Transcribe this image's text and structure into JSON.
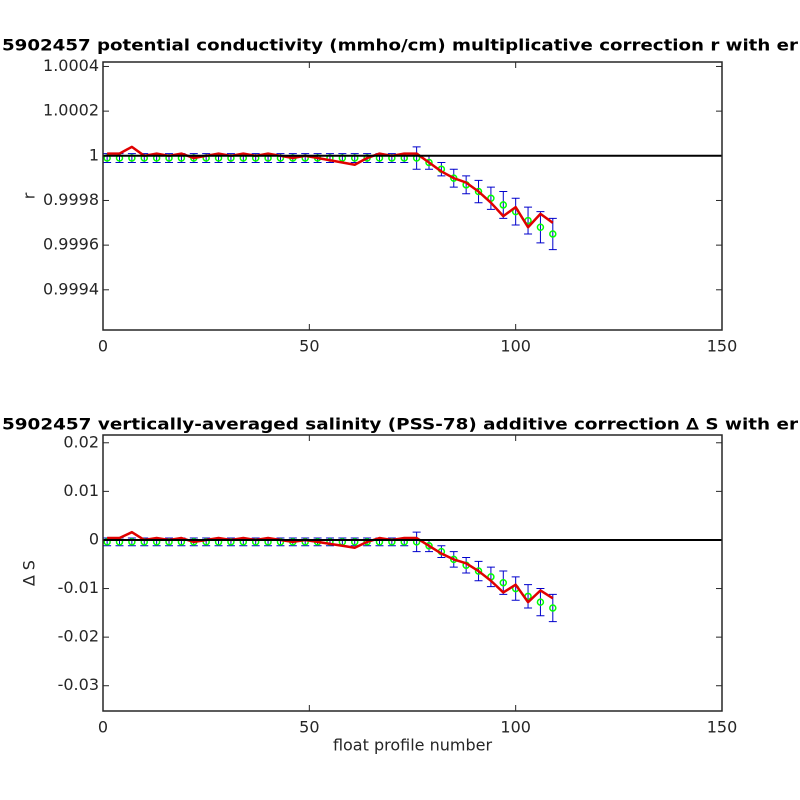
{
  "chart_data": [
    {
      "type": "line",
      "title": "5902457 potential conductivity (mmho/cm) multiplicative correction r with er",
      "ylabel": "r",
      "xlim": [
        0,
        150
      ],
      "xticks": [
        0,
        50,
        100,
        150
      ],
      "ylim": [
        0.99922,
        1.00042
      ],
      "yticks": [
        0.9994,
        0.9996,
        0.9998,
        1,
        1.0002,
        1.0004
      ],
      "reference": 1,
      "reference_color": "#000000",
      "x": [
        1,
        4,
        7,
        10,
        13,
        16,
        19,
        22,
        25,
        28,
        31,
        34,
        37,
        40,
        43,
        46,
        49,
        52,
        55,
        58,
        61,
        64,
        67,
        70,
        73,
        76,
        79,
        82,
        85,
        88,
        91,
        94,
        97,
        100,
        103,
        106,
        109
      ],
      "series": [
        {
          "color": "#00ff00",
          "error_color": "#0000cc",
          "values": [
            0.99999,
            0.99999,
            0.99999,
            0.99999,
            0.99999,
            0.99999,
            0.99999,
            0.99999,
            0.99999,
            0.99999,
            0.99999,
            0.99999,
            0.99999,
            0.99999,
            0.99999,
            0.99999,
            0.99999,
            0.99999,
            0.99999,
            0.99999,
            0.99999,
            0.99999,
            0.99999,
            0.99999,
            0.99999,
            0.99999,
            0.99997,
            0.99994,
            0.9999,
            0.99987,
            0.99984,
            0.99981,
            0.99978,
            0.99975,
            0.99971,
            0.99968,
            0.99965
          ],
          "errors": [
            2e-05,
            2e-05,
            2e-05,
            2e-05,
            2e-05,
            2e-05,
            2e-05,
            2e-05,
            2e-05,
            2e-05,
            2e-05,
            2e-05,
            2e-05,
            2e-05,
            2e-05,
            2e-05,
            2e-05,
            2e-05,
            2e-05,
            2e-05,
            2e-05,
            2e-05,
            2e-05,
            2e-05,
            2e-05,
            5e-05,
            3e-05,
            3e-05,
            4e-05,
            4e-05,
            5e-05,
            5e-05,
            6e-05,
            6e-05,
            6e-05,
            7e-05,
            7e-05
          ]
        },
        {
          "color": "#e00000",
          "values": [
            1.00001,
            1.00001,
            1.00004,
            1,
            1.00001,
            1,
            1.00001,
            0.99999,
            1,
            1.00001,
            1,
            1.00001,
            1,
            1.00001,
            1,
            0.99999,
            1,
            0.99999,
            0.99998,
            0.99997,
            0.99996,
            0.99999,
            1.00001,
            1,
            1.00001,
            1.00001,
            0.99997,
            0.99993,
            0.9999,
            0.99988,
            0.99984,
            0.99979,
            0.99973,
            0.99977,
            0.99968,
            0.99974,
            0.9997
          ]
        }
      ]
    },
    {
      "type": "line",
      "title": "5902457 vertically-averaged salinity (PSS-78) additive correction ∆ S with er",
      "ylabel": "∆ S",
      "xlabel": "float profile number",
      "xlim": [
        0,
        150
      ],
      "xticks": [
        0,
        50,
        100,
        150
      ],
      "ylim": [
        -0.0352,
        0.0216
      ],
      "yticks": [
        -0.03,
        -0.02,
        -0.01,
        0,
        0.01,
        0.02
      ],
      "reference": 0,
      "reference_color": "#000000",
      "x": [
        1,
        4,
        7,
        10,
        13,
        16,
        19,
        22,
        25,
        28,
        31,
        34,
        37,
        40,
        43,
        46,
        49,
        52,
        55,
        58,
        61,
        64,
        67,
        70,
        73,
        76,
        79,
        82,
        85,
        88,
        91,
        94,
        97,
        100,
        103,
        106,
        109
      ],
      "series": [
        {
          "color": "#00ff00",
          "error_color": "#0000cc",
          "values": [
            -0.0004,
            -0.0004,
            -0.0004,
            -0.0004,
            -0.0004,
            -0.0004,
            -0.0004,
            -0.0004,
            -0.0004,
            -0.0004,
            -0.0004,
            -0.0004,
            -0.0004,
            -0.0004,
            -0.0004,
            -0.0004,
            -0.0004,
            -0.0004,
            -0.0004,
            -0.0004,
            -0.0004,
            -0.0004,
            -0.0004,
            -0.0004,
            -0.0004,
            -0.0004,
            -0.0012,
            -0.0024,
            -0.004,
            -0.0052,
            -0.0064,
            -0.0076,
            -0.0088,
            -0.01,
            -0.0116,
            -0.0128,
            -0.014
          ],
          "errors": [
            0.0008,
            0.0008,
            0.0008,
            0.0008,
            0.0008,
            0.0008,
            0.0008,
            0.0008,
            0.0008,
            0.0008,
            0.0008,
            0.0008,
            0.0008,
            0.0008,
            0.0008,
            0.0008,
            0.0008,
            0.0008,
            0.0008,
            0.0008,
            0.0008,
            0.0008,
            0.0008,
            0.0008,
            0.0008,
            0.002,
            0.0012,
            0.0012,
            0.0016,
            0.0016,
            0.002,
            0.002,
            0.0024,
            0.0024,
            0.0024,
            0.0028,
            0.0028
          ]
        },
        {
          "color": "#e00000",
          "values": [
            0.0004,
            0.0004,
            0.0016,
            0,
            0.0004,
            0,
            0.0004,
            -0.0004,
            0,
            0.0004,
            0,
            0.0004,
            0,
            0.0004,
            0,
            -0.0004,
            0,
            -0.0004,
            -0.0008,
            -0.0012,
            -0.0016,
            -0.0004,
            0.0004,
            0,
            0.0004,
            0.0004,
            -0.0012,
            -0.0028,
            -0.004,
            -0.0048,
            -0.0064,
            -0.0084,
            -0.0108,
            -0.0092,
            -0.0128,
            -0.0104,
            -0.012
          ]
        }
      ]
    }
  ]
}
